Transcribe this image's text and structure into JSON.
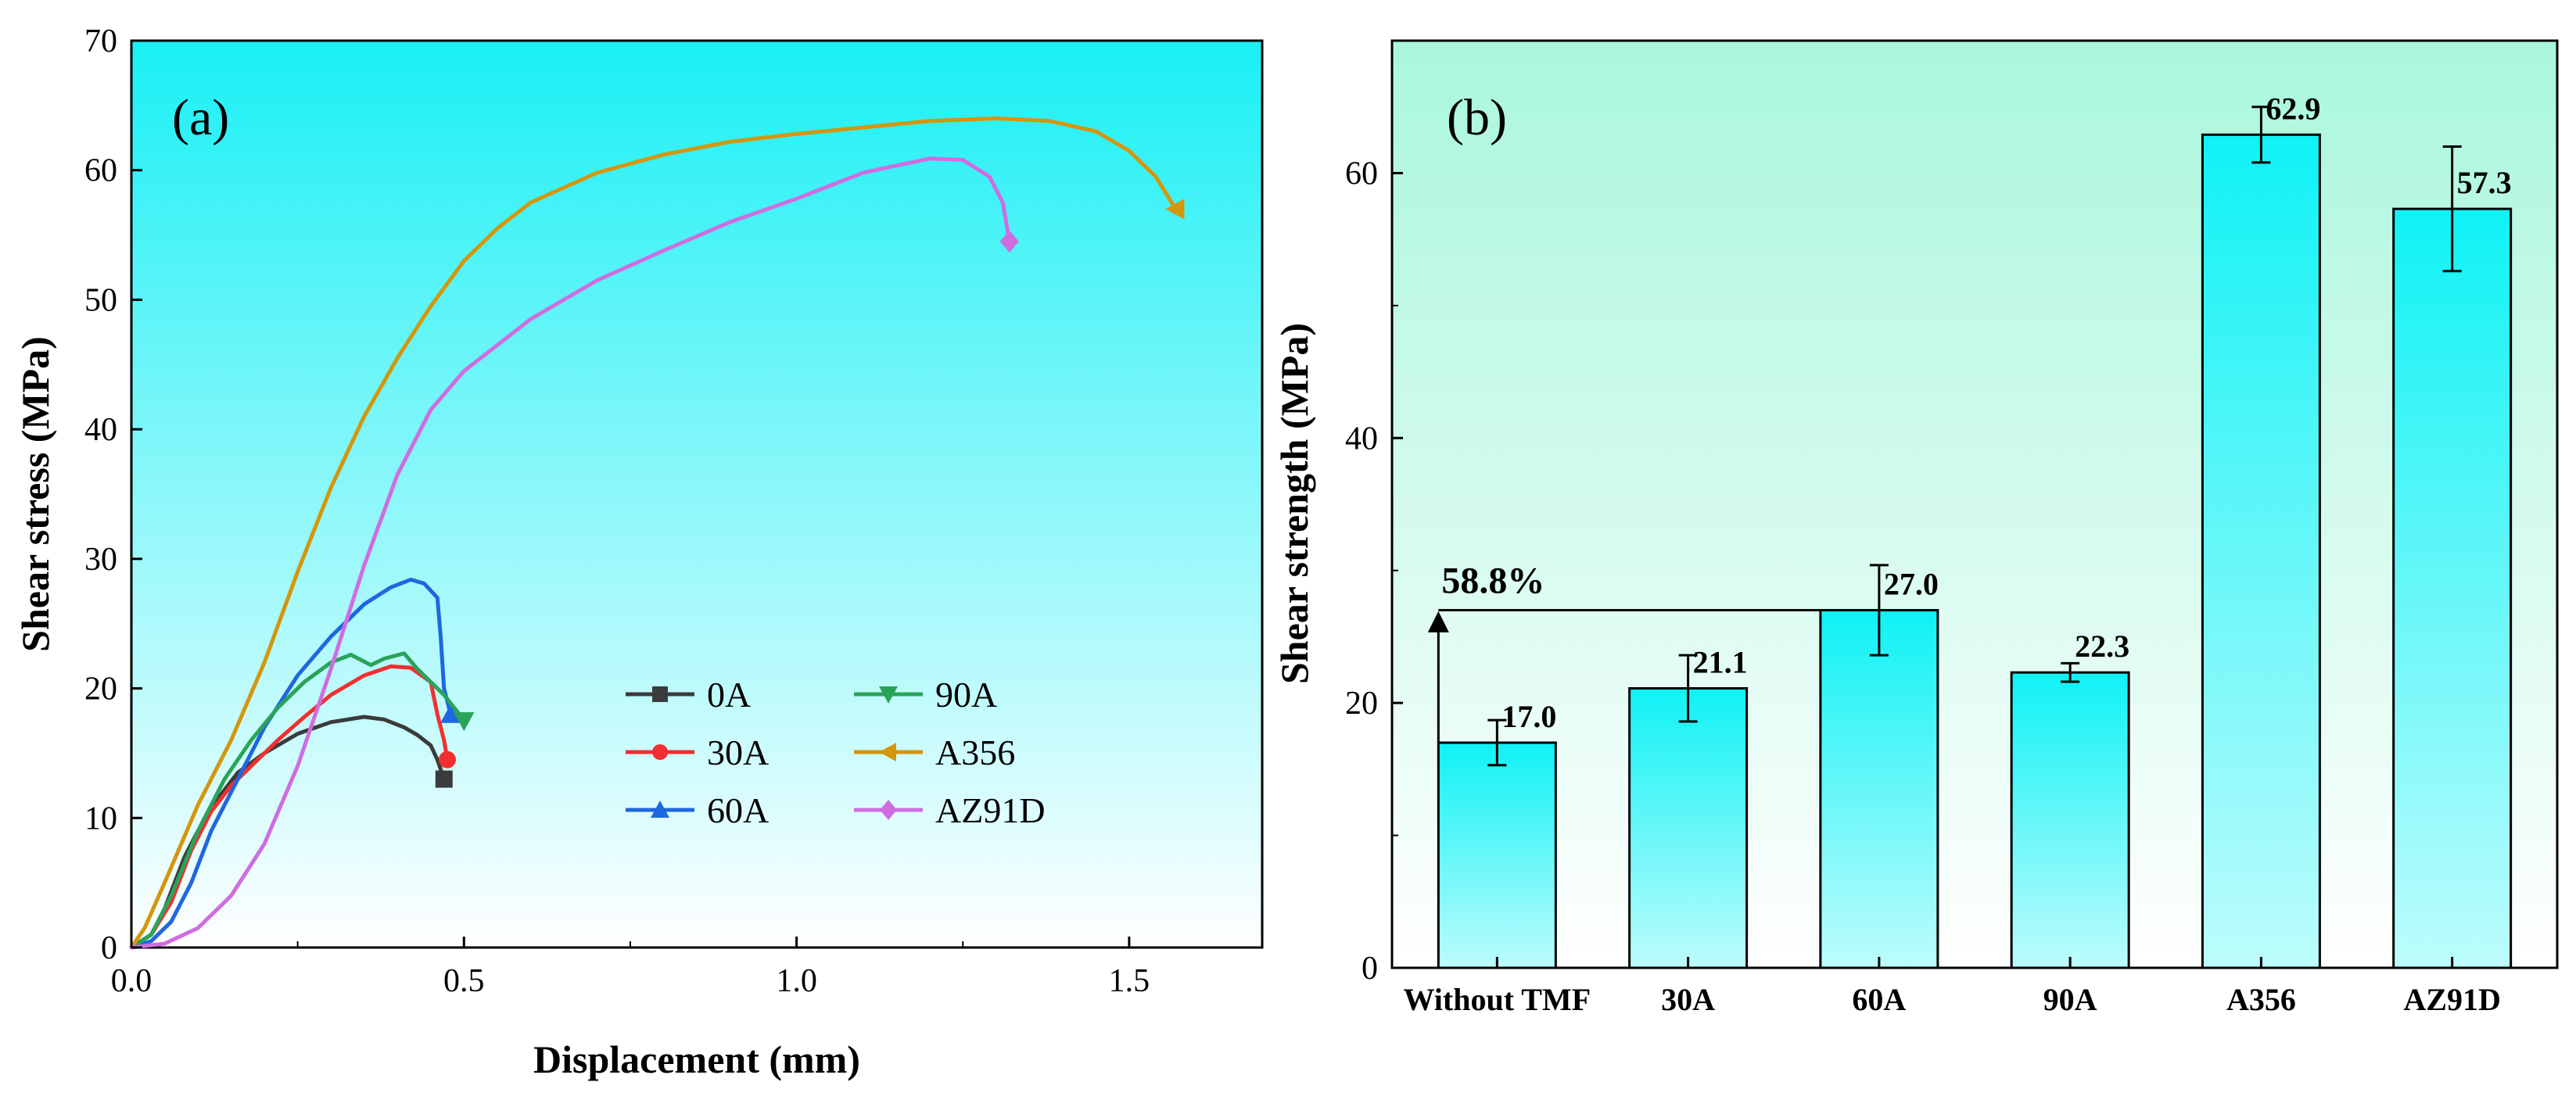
{
  "chart_data": [
    {
      "type": "line",
      "panel_label": "(a)",
      "xlabel": "Displacement (mm)",
      "ylabel": "Shear stress (MPa)",
      "xlim": [
        0,
        1.7
      ],
      "ylim": [
        0,
        70
      ],
      "xticks": [
        "0.0",
        "0.5",
        "1.0",
        "1.5"
      ],
      "xtick_values": [
        0,
        0.5,
        1.0,
        1.5
      ],
      "yticks": [
        "0",
        "10",
        "20",
        "30",
        "40",
        "50",
        "60",
        "70"
      ],
      "ytick_values": [
        0,
        10,
        20,
        30,
        40,
        50,
        60,
        70
      ],
      "legend_position": "lower-right",
      "background": {
        "top": "#19f0f5",
        "bottom": "#ffffff"
      },
      "series": [
        {
          "name": "0A",
          "color": "#3b3b3b",
          "marker": "square",
          "points": [
            [
              0,
              0
            ],
            [
              0.03,
              1
            ],
            [
              0.05,
              3
            ],
            [
              0.08,
              7
            ],
            [
              0.1,
              9
            ],
            [
              0.13,
              11.5
            ],
            [
              0.16,
              13.5
            ],
            [
              0.2,
              15
            ],
            [
              0.25,
              16.5
            ],
            [
              0.3,
              17.4
            ],
            [
              0.35,
              17.8
            ],
            [
              0.38,
              17.6
            ],
            [
              0.41,
              17
            ],
            [
              0.43,
              16.4
            ],
            [
              0.45,
              15.6
            ],
            [
              0.46,
              14.5
            ],
            [
              0.47,
              13
            ]
          ]
        },
        {
          "name": "30A",
          "color": "#f22f2f",
          "marker": "circle",
          "points": [
            [
              0,
              0
            ],
            [
              0.03,
              1
            ],
            [
              0.06,
              3.5
            ],
            [
              0.09,
              7.5
            ],
            [
              0.12,
              10.5
            ],
            [
              0.15,
              12.5
            ],
            [
              0.18,
              14
            ],
            [
              0.22,
              16
            ],
            [
              0.26,
              17.8
            ],
            [
              0.3,
              19.5
            ],
            [
              0.35,
              21
            ],
            [
              0.39,
              21.7
            ],
            [
              0.42,
              21.6
            ],
            [
              0.45,
              20.5
            ],
            [
              0.46,
              18
            ],
            [
              0.47,
              16
            ],
            [
              0.475,
              14.5
            ]
          ]
        },
        {
          "name": "60A",
          "color": "#1f67e0",
          "marker": "triangle-up",
          "points": [
            [
              0,
              0
            ],
            [
              0.03,
              0.5
            ],
            [
              0.06,
              2
            ],
            [
              0.09,
              5
            ],
            [
              0.12,
              9
            ],
            [
              0.16,
              13
            ],
            [
              0.2,
              17
            ],
            [
              0.25,
              21
            ],
            [
              0.3,
              24
            ],
            [
              0.35,
              26.5
            ],
            [
              0.39,
              27.8
            ],
            [
              0.42,
              28.4
            ],
            [
              0.44,
              28.1
            ],
            [
              0.46,
              27
            ],
            [
              0.465,
              24
            ],
            [
              0.47,
              20
            ],
            [
              0.48,
              18
            ]
          ]
        },
        {
          "name": "90A",
          "color": "#2aa35a",
          "marker": "triangle-down",
          "points": [
            [
              0,
              0
            ],
            [
              0.03,
              1
            ],
            [
              0.06,
              4
            ],
            [
              0.1,
              9
            ],
            [
              0.14,
              13
            ],
            [
              0.18,
              16
            ],
            [
              0.22,
              18.5
            ],
            [
              0.26,
              20.5
            ],
            [
              0.3,
              22
            ],
            [
              0.33,
              22.6
            ],
            [
              0.36,
              21.8
            ],
            [
              0.38,
              22.3
            ],
            [
              0.41,
              22.7
            ],
            [
              0.43,
              21.5
            ],
            [
              0.45,
              20.5
            ],
            [
              0.47,
              19.5
            ],
            [
              0.49,
              18.2
            ],
            [
              0.5,
              17.5
            ]
          ]
        },
        {
          "name": "A356",
          "color": "#d4960c",
          "marker": "triangle-left",
          "points": [
            [
              0,
              0
            ],
            [
              0.02,
              1.5
            ],
            [
              0.05,
              5
            ],
            [
              0.1,
              11
            ],
            [
              0.15,
              16
            ],
            [
              0.2,
              22
            ],
            [
              0.25,
              29
            ],
            [
              0.3,
              35.5
            ],
            [
              0.35,
              41
            ],
            [
              0.4,
              45.5
            ],
            [
              0.45,
              49.5
            ],
            [
              0.5,
              53
            ],
            [
              0.55,
              55.5
            ],
            [
              0.6,
              57.5
            ],
            [
              0.7,
              59.8
            ],
            [
              0.8,
              61.2
            ],
            [
              0.9,
              62.2
            ],
            [
              1.0,
              62.8
            ],
            [
              1.1,
              63.3
            ],
            [
              1.2,
              63.8
            ],
            [
              1.3,
              64
            ],
            [
              1.38,
              63.8
            ],
            [
              1.45,
              63
            ],
            [
              1.5,
              61.5
            ],
            [
              1.54,
              59.5
            ],
            [
              1.57,
              57
            ]
          ]
        },
        {
          "name": "AZ91D",
          "color": "#cf6de0",
          "marker": "diamond",
          "points": [
            [
              0,
              0
            ],
            [
              0.05,
              0.3
            ],
            [
              0.1,
              1.5
            ],
            [
              0.15,
              4
            ],
            [
              0.2,
              8
            ],
            [
              0.25,
              14
            ],
            [
              0.3,
              21.5
            ],
            [
              0.35,
              29.5
            ],
            [
              0.4,
              36.5
            ],
            [
              0.45,
              41.5
            ],
            [
              0.5,
              44.5
            ],
            [
              0.6,
              48.5
            ],
            [
              0.7,
              51.5
            ],
            [
              0.8,
              53.8
            ],
            [
              0.9,
              56
            ],
            [
              1.0,
              57.8
            ],
            [
              1.1,
              59.8
            ],
            [
              1.2,
              60.9
            ],
            [
              1.25,
              60.8
            ],
            [
              1.29,
              59.5
            ],
            [
              1.31,
              57.5
            ],
            [
              1.32,
              54.5
            ]
          ]
        }
      ]
    },
    {
      "type": "bar",
      "panel_label": "(b)",
      "xlabel": "",
      "ylabel": "Shear strength (MPa)",
      "ylim": [
        0,
        70
      ],
      "yticks": [
        "0",
        "20",
        "40",
        "60"
      ],
      "ytick_values": [
        0,
        20,
        40,
        60
      ],
      "categories": [
        "Without TMF",
        "30A",
        "60A",
        "90A",
        "A356",
        "AZ91D"
      ],
      "values": [
        17.0,
        21.1,
        27.0,
        22.3,
        62.9,
        57.3
      ],
      "value_labels": [
        "17.0",
        "21.1",
        "27.0",
        "22.3",
        "62.9",
        "57.3"
      ],
      "errors": [
        1.7,
        2.5,
        3.4,
        0.7,
        2.1,
        4.7
      ],
      "bar_color": {
        "top": "#0ff2f5",
        "bottom": "#bdfcfc"
      },
      "background": {
        "top": "#a9f7dc",
        "bottom": "#ffffff"
      },
      "annotation": {
        "text": "58.8%",
        "from_value": 17.0,
        "to_value": 27.0
      }
    }
  ]
}
